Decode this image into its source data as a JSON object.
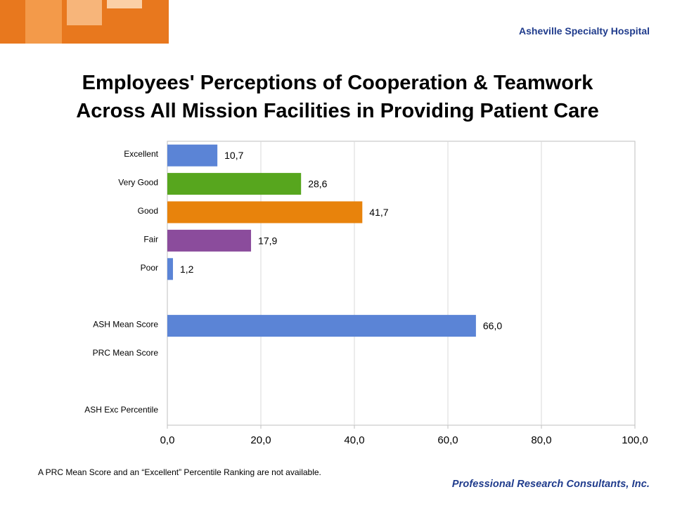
{
  "header": {
    "hospital_name": "Asheville Specialty Hospital",
    "accent_colors": [
      "#e8781e",
      "#f4a460",
      "#f7c08a"
    ]
  },
  "title_lines": [
    "Employees' Perceptions of Cooperation & Teamwork",
    "Across All Mission Facilities in Providing Patient Care"
  ],
  "footnote": "A PRC Mean Score and an “Excellent” Percentile Ranking are not available.",
  "logo_text": "Professional Research Consultants, Inc.",
  "chart_data": {
    "type": "bar",
    "orientation": "horizontal",
    "categories": [
      "Excellent",
      "Very Good",
      "Good",
      "Fair",
      "Poor",
      "",
      "ASH Mean Score",
      "PRC Mean Score",
      "",
      "ASH Exc Percentile"
    ],
    "values": [
      10.7,
      28.6,
      41.7,
      17.9,
      1.2,
      null,
      66.0,
      null,
      null,
      null
    ],
    "value_labels": [
      "10,7",
      "28,6",
      "41,7",
      "17,9",
      "1,2",
      "",
      "66,0",
      "",
      "",
      ""
    ],
    "colors": [
      "#5b84d6",
      "#57a61e",
      "#e8830c",
      "#8b4c9c",
      "#5b84d6",
      "",
      "#5b84d6",
      "",
      "",
      ""
    ],
    "xlim": [
      0,
      100
    ],
    "x_ticks": [
      0,
      20,
      40,
      60,
      80,
      100
    ],
    "x_tick_labels": [
      "0,0",
      "20,0",
      "40,0",
      "60,0",
      "80,0",
      "100,0"
    ],
    "grid": true,
    "xlabel": "",
    "ylabel": ""
  }
}
